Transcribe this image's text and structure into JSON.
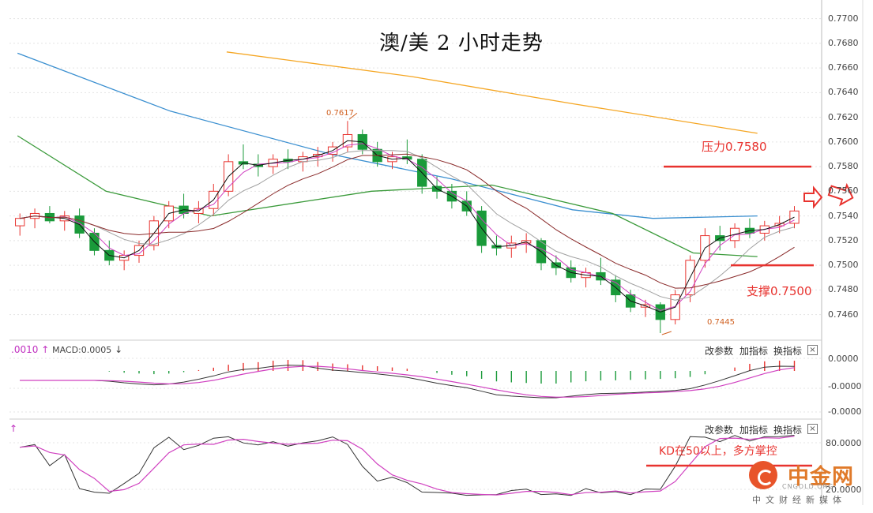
{
  "title": "澳/美 2 小时走势",
  "annotations": {
    "resistance": "压力0.7580",
    "support": "支撑0.7500",
    "kd_note": "KD在50以上，多方掌控",
    "high_label": "0.7617",
    "low_label": "0.7445"
  },
  "main_axis": {
    "ticks": [
      "0.7700",
      "0.7680",
      "0.7660",
      "0.7640",
      "0.7620",
      "0.7600",
      "0.7580",
      "0.7560",
      "0.7540",
      "0.7520",
      "0.7500",
      "0.7480",
      "0.7460"
    ]
  },
  "macd_panel": {
    "header_left": ".0010",
    "header_arrow": "↑",
    "header_value": "MACD:0.0005",
    "header_down": "↓",
    "ticks": [
      "0.0000",
      "-0.0000",
      "-0.0000"
    ]
  },
  "kd_panel": {
    "header_arrow": "↑",
    "ticks": [
      "80.0000",
      "20.0000"
    ]
  },
  "toolbar": {
    "adjust": "改参数",
    "add": "加指标",
    "swap": "换指标",
    "close": "×"
  },
  "watermark": {
    "name": "中金网",
    "en": "CNGOLD.ORG",
    "sub": "中文财经新媒体"
  },
  "colors": {
    "up": "#e8332f",
    "down": "#1a9a3a",
    "ma_yellow": "#f5a623",
    "ma_blue": "#3a8fd0",
    "ma_green": "#3a9a3a",
    "ma_magenta": "#d040c0",
    "ma_gray": "#a0a0a0",
    "ma_brown": "#8a2a2a",
    "line_red": "#e8332f"
  },
  "chart_data": [
    {
      "type": "candlestick",
      "title": "澳/美 2 小时走势",
      "ylim": [
        0.7445,
        0.771
      ],
      "levels": {
        "resistance": 0.758,
        "support": 0.75
      },
      "extremes": {
        "high": 0.7617,
        "low": 0.7445
      },
      "candles": [
        [
          0.7532,
          0.7542,
          0.7524,
          0.7538
        ],
        [
          0.7538,
          0.7546,
          0.753,
          0.7542
        ],
        [
          0.7542,
          0.7548,
          0.7534,
          0.7536
        ],
        [
          0.7536,
          0.7544,
          0.7528,
          0.754
        ],
        [
          0.754,
          0.7546,
          0.7522,
          0.7526
        ],
        [
          0.7526,
          0.753,
          0.7508,
          0.7512
        ],
        [
          0.7512,
          0.752,
          0.75,
          0.7504
        ],
        [
          0.7504,
          0.7512,
          0.7496,
          0.7508
        ],
        [
          0.7508,
          0.752,
          0.7502,
          0.7516
        ],
        [
          0.7516,
          0.754,
          0.7512,
          0.7536
        ],
        [
          0.7536,
          0.7552,
          0.753,
          0.7548
        ],
        [
          0.7548,
          0.7558,
          0.7538,
          0.7542
        ],
        [
          0.7542,
          0.7552,
          0.7534,
          0.7546
        ],
        [
          0.7546,
          0.7566,
          0.754,
          0.756
        ],
        [
          0.756,
          0.759,
          0.7556,
          0.7584
        ],
        [
          0.7584,
          0.7598,
          0.7578,
          0.7582
        ],
        [
          0.7582,
          0.759,
          0.7572,
          0.758
        ],
        [
          0.758,
          0.759,
          0.7574,
          0.7586
        ],
        [
          0.7586,
          0.7594,
          0.7578,
          0.7584
        ],
        [
          0.7584,
          0.7592,
          0.7576,
          0.7588
        ],
        [
          0.7588,
          0.7596,
          0.758,
          0.759
        ],
        [
          0.759,
          0.76,
          0.7584,
          0.7596
        ],
        [
          0.7596,
          0.7617,
          0.7592,
          0.7606
        ],
        [
          0.7606,
          0.761,
          0.759,
          0.7594
        ],
        [
          0.7594,
          0.76,
          0.758,
          0.7584
        ],
        [
          0.7584,
          0.7592,
          0.7578,
          0.7588
        ],
        [
          0.7588,
          0.7602,
          0.7582,
          0.7586
        ],
        [
          0.7586,
          0.759,
          0.7558,
          0.7564
        ],
        [
          0.7564,
          0.7572,
          0.7554,
          0.756
        ],
        [
          0.756,
          0.7566,
          0.7546,
          0.7552
        ],
        [
          0.7552,
          0.756,
          0.754,
          0.7544
        ],
        [
          0.7544,
          0.7548,
          0.751,
          0.7516
        ],
        [
          0.7516,
          0.7524,
          0.7508,
          0.7514
        ],
        [
          0.7514,
          0.7524,
          0.7506,
          0.7518
        ],
        [
          0.7518,
          0.7526,
          0.751,
          0.752
        ],
        [
          0.752,
          0.7522,
          0.7496,
          0.7502
        ],
        [
          0.7502,
          0.7508,
          0.7492,
          0.7498
        ],
        [
          0.7498,
          0.7504,
          0.7486,
          0.749
        ],
        [
          0.749,
          0.7498,
          0.7482,
          0.7494
        ],
        [
          0.7494,
          0.7506,
          0.7484,
          0.7488
        ],
        [
          0.7488,
          0.7492,
          0.747,
          0.7476
        ],
        [
          0.7476,
          0.748,
          0.7462,
          0.7466
        ],
        [
          0.7466,
          0.7472,
          0.7458,
          0.7468
        ],
        [
          0.7468,
          0.747,
          0.7445,
          0.7456
        ],
        [
          0.7456,
          0.748,
          0.7452,
          0.7476
        ],
        [
          0.7476,
          0.7508,
          0.747,
          0.7504
        ],
        [
          0.7504,
          0.753,
          0.7498,
          0.7524
        ],
        [
          0.7524,
          0.7532,
          0.7512,
          0.752
        ],
        [
          0.752,
          0.7534,
          0.7514,
          0.753
        ],
        [
          0.753,
          0.7538,
          0.7522,
          0.7526
        ],
        [
          0.7526,
          0.7536,
          0.752,
          0.7532
        ],
        [
          0.7532,
          0.754,
          0.7526,
          0.7534
        ],
        [
          0.7534,
          0.7548,
          0.753,
          0.7544
        ]
      ],
      "moving_averages": [
        {
          "color": "#f5a623",
          "points": [
            [
              0.27,
              0.7673
            ],
            [
              0.5,
              0.7653
            ],
            [
              0.7,
              0.7631
            ],
            [
              0.93,
              0.7607
            ]
          ]
        },
        {
          "color": "#3a8fd0",
          "points": [
            [
              0.01,
              0.7672
            ],
            [
              0.2,
              0.7625
            ],
            [
              0.4,
              0.759
            ],
            [
              0.55,
              0.757
            ],
            [
              0.7,
              0.7545
            ],
            [
              0.8,
              0.7538
            ],
            [
              0.93,
              0.754
            ]
          ]
        },
        {
          "color": "#3a9a3a",
          "points": [
            [
              0.01,
              0.7605
            ],
            [
              0.12,
              0.756
            ],
            [
              0.25,
              0.754
            ],
            [
              0.45,
              0.756
            ],
            [
              0.6,
              0.7565
            ],
            [
              0.75,
              0.7542
            ],
            [
              0.85,
              0.751
            ],
            [
              0.93,
              0.7507
            ]
          ]
        }
      ]
    },
    {
      "type": "bar",
      "title": "MACD",
      "value": 0.0005
    },
    {
      "type": "line",
      "title": "KD",
      "threshold": 50
    }
  ]
}
